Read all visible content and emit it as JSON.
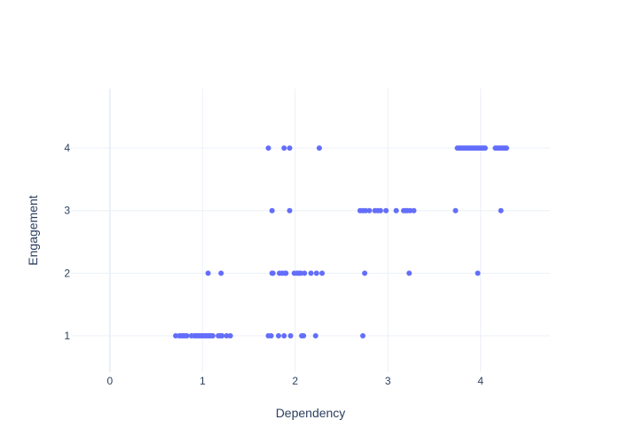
{
  "chart_data": {
    "type": "scatter",
    "title": "",
    "xlabel": "Dependency",
    "ylabel": "Engagement",
    "xlim": [
      -0.42,
      4.75
    ],
    "ylim": [
      0.42,
      4.95
    ],
    "xticks": [
      0,
      1,
      2,
      3,
      4
    ],
    "yticks": [
      1,
      2,
      3,
      4
    ],
    "grid": true,
    "colors": {
      "marker": "#636efa",
      "grid": "#ebf0f8",
      "zeroline": "#ebf0f8",
      "text": "#2a3f5f",
      "background": "#ffffff"
    },
    "series": [
      {
        "points": [
          [
            0.71,
            1
          ],
          [
            0.75,
            1
          ],
          [
            0.77,
            1
          ],
          [
            0.79,
            1
          ],
          [
            0.81,
            1
          ],
          [
            0.83,
            1
          ],
          [
            0.88,
            1
          ],
          [
            0.91,
            1
          ],
          [
            0.93,
            1
          ],
          [
            0.95,
            1
          ],
          [
            0.97,
            1
          ],
          [
            0.99,
            1
          ],
          [
            1.01,
            1
          ],
          [
            1.03,
            1
          ],
          [
            1.05,
            1
          ],
          [
            1.07,
            1
          ],
          [
            1.09,
            1
          ],
          [
            1.11,
            1
          ],
          [
            1.17,
            1
          ],
          [
            1.19,
            1
          ],
          [
            1.21,
            1
          ],
          [
            1.26,
            1
          ],
          [
            1.3,
            1
          ],
          [
            1.71,
            1
          ],
          [
            1.74,
            1
          ],
          [
            1.82,
            1
          ],
          [
            1.88,
            1
          ],
          [
            1.95,
            1
          ],
          [
            2.07,
            1
          ],
          [
            2.09,
            1
          ],
          [
            2.22,
            1
          ],
          [
            2.73,
            1
          ],
          [
            1.06,
            2
          ],
          [
            1.2,
            2
          ],
          [
            1.75,
            2
          ],
          [
            1.76,
            2
          ],
          [
            1.83,
            2
          ],
          [
            1.86,
            2
          ],
          [
            1.89,
            2
          ],
          [
            1.9,
            2
          ],
          [
            1.99,
            2
          ],
          [
            2.02,
            2
          ],
          [
            2.04,
            2
          ],
          [
            2.06,
            2
          ],
          [
            2.1,
            2
          ],
          [
            2.17,
            2
          ],
          [
            2.23,
            2
          ],
          [
            2.29,
            2
          ],
          [
            2.75,
            2
          ],
          [
            3.23,
            2
          ],
          [
            3.97,
            2
          ],
          [
            1.75,
            3
          ],
          [
            1.94,
            3
          ],
          [
            2.7,
            3
          ],
          [
            2.73,
            3
          ],
          [
            2.76,
            3
          ],
          [
            2.8,
            3
          ],
          [
            2.86,
            3
          ],
          [
            2.89,
            3
          ],
          [
            2.92,
            3
          ],
          [
            2.98,
            3
          ],
          [
            3.09,
            3
          ],
          [
            3.17,
            3
          ],
          [
            3.19,
            3
          ],
          [
            3.21,
            3
          ],
          [
            3.24,
            3
          ],
          [
            3.28,
            3
          ],
          [
            3.73,
            3
          ],
          [
            4.22,
            3
          ],
          [
            1.71,
            4
          ],
          [
            1.88,
            4
          ],
          [
            1.94,
            4
          ],
          [
            2.26,
            4
          ],
          [
            3.75,
            4
          ],
          [
            3.77,
            4
          ],
          [
            3.79,
            4
          ],
          [
            3.81,
            4
          ],
          [
            3.83,
            4
          ],
          [
            3.85,
            4
          ],
          [
            3.87,
            4
          ],
          [
            3.89,
            4
          ],
          [
            3.91,
            4
          ],
          [
            3.93,
            4
          ],
          [
            3.95,
            4
          ],
          [
            3.97,
            4
          ],
          [
            3.99,
            4
          ],
          [
            4.01,
            4
          ],
          [
            4.03,
            4
          ],
          [
            4.05,
            4
          ],
          [
            4.16,
            4
          ],
          [
            4.18,
            4
          ],
          [
            4.2,
            4
          ],
          [
            4.22,
            4
          ],
          [
            4.24,
            4
          ],
          [
            4.26,
            4
          ],
          [
            4.28,
            4
          ]
        ]
      }
    ]
  }
}
